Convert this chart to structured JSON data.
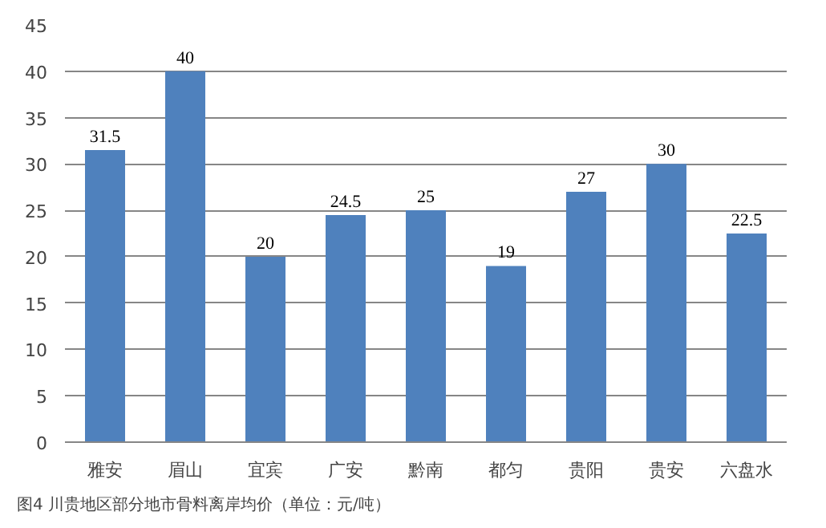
{
  "chart_data": {
    "type": "bar",
    "categories": [
      "雅安",
      "眉山",
      "宜宾",
      "广安",
      "黔南",
      "都匀",
      "贵阳",
      "贵安",
      "六盘水"
    ],
    "values": [
      31.5,
      40,
      20,
      24.5,
      25,
      19,
      27,
      30,
      22.5
    ],
    "color": "#4f81bd",
    "ylim": [
      0,
      45
    ],
    "yticks": [
      0,
      5,
      10,
      15,
      20,
      25,
      30,
      35,
      40,
      45
    ],
    "grid": "y",
    "data_labels": true,
    "annotations": [
      "图4 川贵地区部分地市骨料离岸均价（单位：元/吨）"
    ]
  }
}
